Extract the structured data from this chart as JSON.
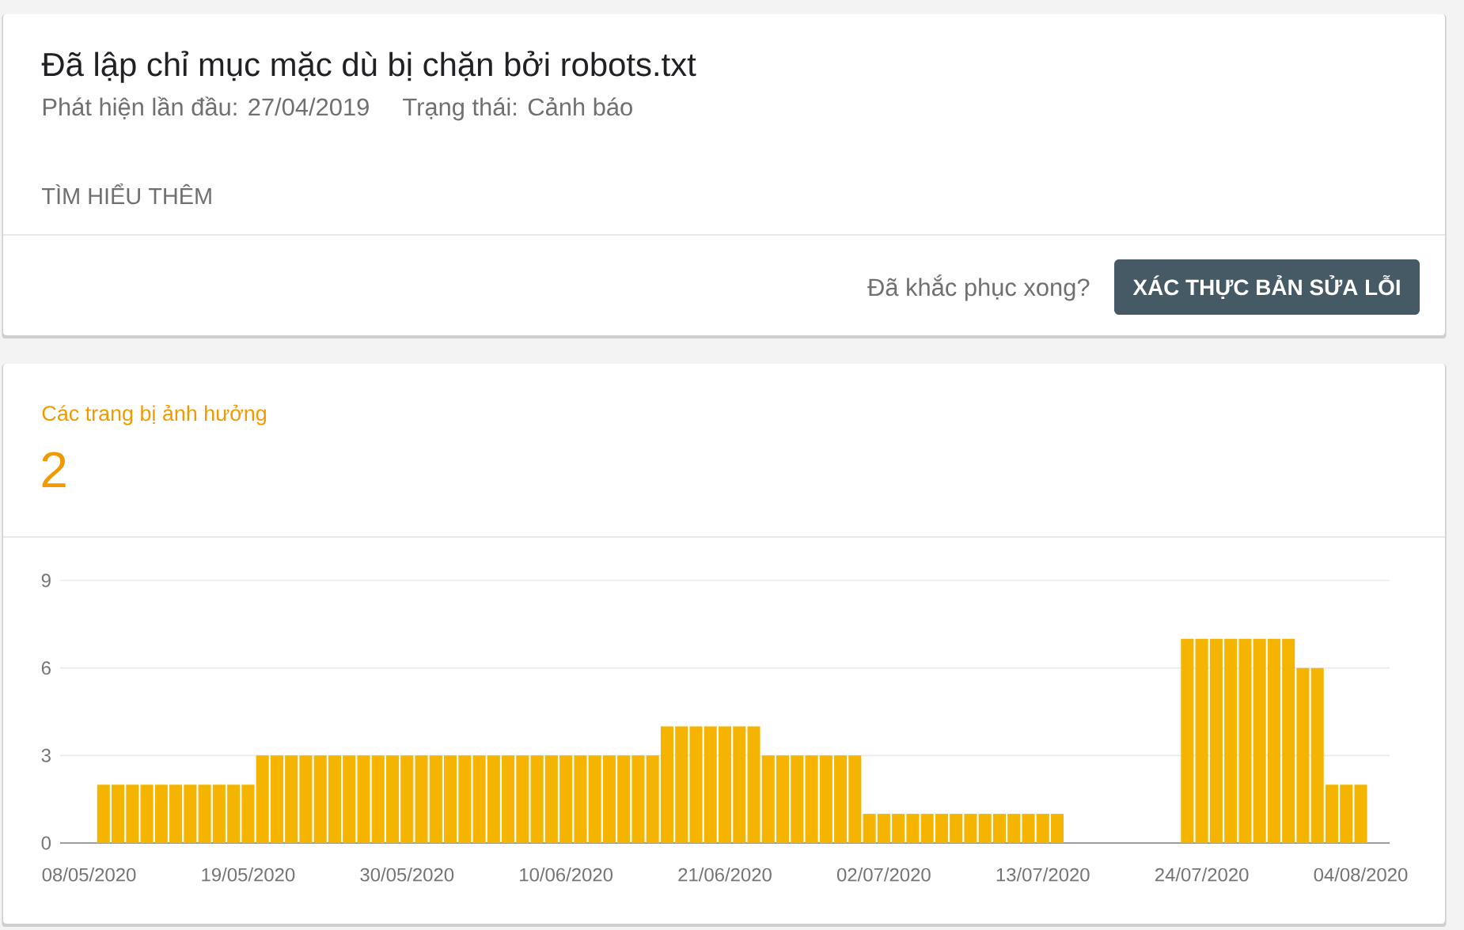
{
  "chart_data": {
    "type": "bar",
    "title": "Đã lập chỉ mục mặc dù bị chặn bởi robots.txt",
    "subtitle": "Phát hiện lần đầu: 27/04/2019",
    "annotations": [
      "Trạng thái: Cảnh báo",
      "TÌM HIỂU THÊM",
      "Đã khắc phục xong?",
      "XÁC THỰC BẢN SỬA LỖI",
      "Các trang bị ảnh hưởng",
      "2"
    ],
    "x": [
      "2020-05-09",
      "2020-05-10",
      "2020-05-11",
      "2020-05-12",
      "2020-05-13",
      "2020-05-14",
      "2020-05-15",
      "2020-05-16",
      "2020-05-17",
      "2020-05-18",
      "2020-05-19",
      "2020-05-20",
      "2020-05-21",
      "2020-05-22",
      "2020-05-23",
      "2020-05-24",
      "2020-05-25",
      "2020-05-26",
      "2020-05-27",
      "2020-05-28",
      "2020-05-29",
      "2020-05-30",
      "2020-05-31",
      "2020-06-01",
      "2020-06-02",
      "2020-06-03",
      "2020-06-04",
      "2020-06-05",
      "2020-06-06",
      "2020-06-07",
      "2020-06-08",
      "2020-06-09",
      "2020-06-10",
      "2020-06-11",
      "2020-06-12",
      "2020-06-13",
      "2020-06-14",
      "2020-06-15",
      "2020-06-16",
      "2020-06-17",
      "2020-06-18",
      "2020-06-19",
      "2020-06-20",
      "2020-06-21",
      "2020-06-22",
      "2020-06-23",
      "2020-06-24",
      "2020-06-25",
      "2020-06-26",
      "2020-06-27",
      "2020-06-28",
      "2020-06-29",
      "2020-06-30",
      "2020-07-01",
      "2020-07-02",
      "2020-07-03",
      "2020-07-04",
      "2020-07-05",
      "2020-07-06",
      "2020-07-07",
      "2020-07-08",
      "2020-07-09",
      "2020-07-10",
      "2020-07-11",
      "2020-07-12",
      "2020-07-13",
      "2020-07-14",
      "2020-07-15",
      "2020-07-16",
      "2020-07-17",
      "2020-07-18",
      "2020-07-19",
      "2020-07-20",
      "2020-07-21",
      "2020-07-22",
      "2020-07-23",
      "2020-07-24",
      "2020-07-25",
      "2020-07-26",
      "2020-07-27",
      "2020-07-28",
      "2020-07-29",
      "2020-07-30",
      "2020-07-31",
      "2020-08-01",
      "2020-08-02",
      "2020-08-03",
      "2020-08-04"
    ],
    "values": [
      2,
      2,
      2,
      2,
      2,
      2,
      2,
      2,
      2,
      2,
      2,
      3,
      3,
      3,
      3,
      3,
      3,
      3,
      3,
      3,
      3,
      3,
      3,
      3,
      3,
      3,
      3,
      3,
      3,
      3,
      3,
      3,
      3,
      3,
      3,
      3,
      3,
      3,
      3,
      4,
      4,
      4,
      4,
      4,
      4,
      4,
      3,
      3,
      3,
      3,
      3,
      3,
      3,
      1,
      1,
      1,
      1,
      1,
      1,
      1,
      1,
      1,
      1,
      1,
      1,
      1,
      1,
      null,
      null,
      null,
      null,
      null,
      null,
      null,
      null,
      7,
      7,
      7,
      7,
      7,
      7,
      7,
      7,
      6,
      6,
      2,
      2,
      2
    ],
    "color": "#f4b400",
    "xlim": [
      "2020-05-06",
      "2020-08-06"
    ],
    "xticks": [
      {
        "value": "2020-05-08",
        "label": "08/05/2020"
      },
      {
        "value": "2020-05-19",
        "label": "19/05/2020"
      },
      {
        "value": "2020-05-30",
        "label": "30/05/2020"
      },
      {
        "value": "2020-06-10",
        "label": "10/06/2020"
      },
      {
        "value": "2020-06-21",
        "label": "21/06/2020"
      },
      {
        "value": "2020-07-02",
        "label": "02/07/2020"
      },
      {
        "value": "2020-07-13",
        "label": "13/07/2020"
      },
      {
        "value": "2020-07-24",
        "label": "24/07/2020"
      },
      {
        "value": "2020-08-04",
        "label": "04/08/2020"
      }
    ],
    "ylim": [
      0,
      9
    ],
    "yticks": [
      0,
      3,
      6,
      9
    ],
    "grid": "y"
  }
}
